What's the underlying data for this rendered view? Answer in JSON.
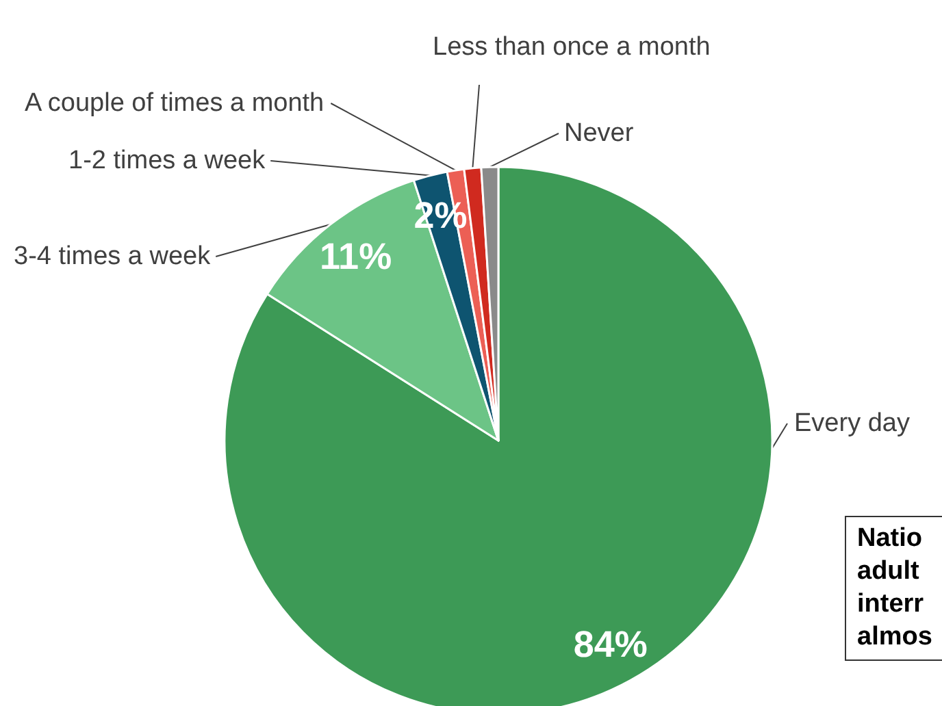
{
  "chart_data": {
    "type": "pie",
    "categories": [
      "Every day",
      "3-4 times a week",
      "1-2 times a week",
      "A couple of times a month",
      "Less than once a month",
      "Never"
    ],
    "values": [
      84,
      11,
      2,
      1,
      1,
      1
    ],
    "colors": [
      "#3d9a56",
      "#6cc486",
      "#0e5470",
      "#ec5f55",
      "#d02a1f",
      "#8a8a8a"
    ],
    "value_labels": [
      "84%",
      "11%",
      "2%",
      null,
      null,
      null
    ],
    "annotations": [
      "Natio\nadult\ninterr\nalmos"
    ],
    "legend": false
  }
}
